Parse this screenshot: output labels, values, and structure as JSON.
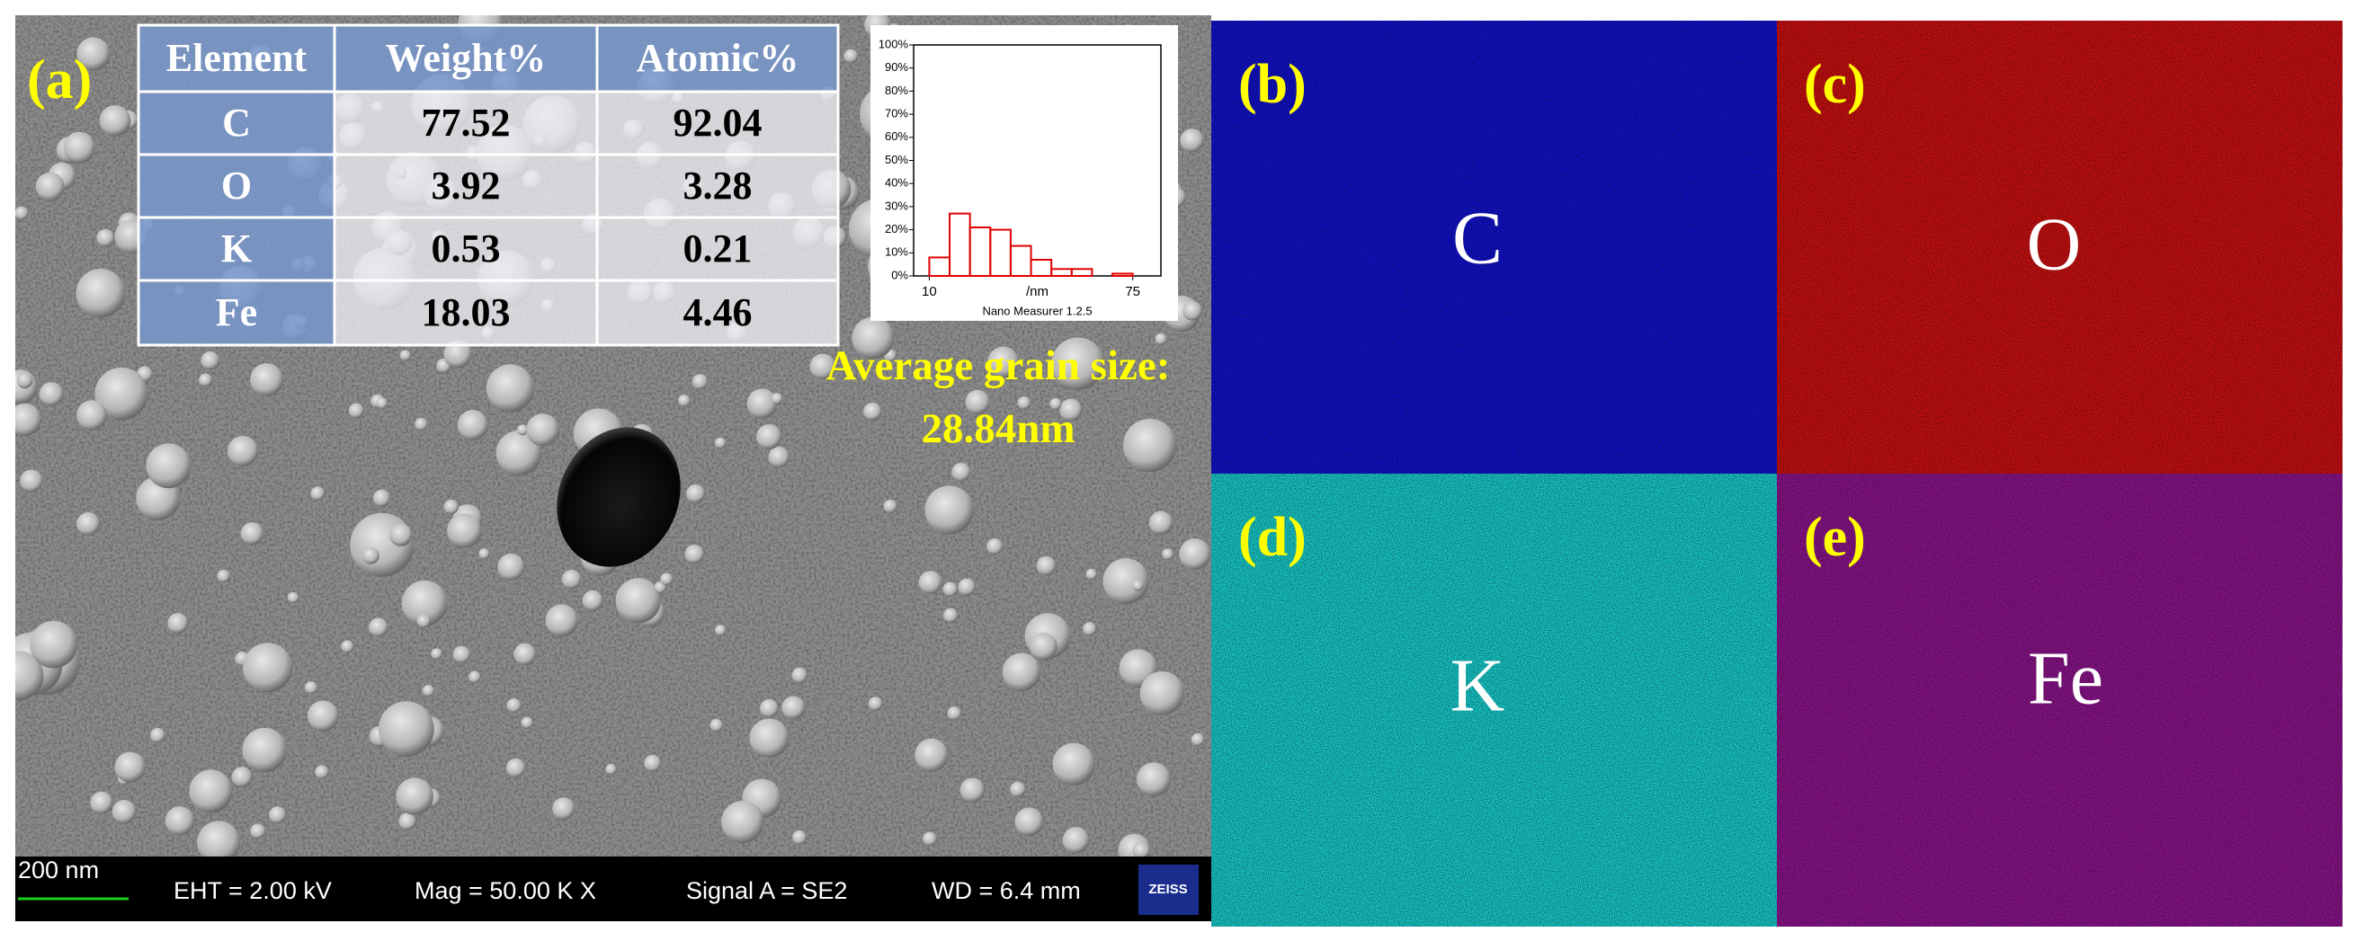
{
  "sem": {
    "label": "(a)",
    "table": {
      "header": [
        "Element",
        "Weight%",
        "Atomic%"
      ],
      "rows": [
        [
          "C",
          77.52,
          92.04
        ],
        [
          "O",
          3.92,
          3.28
        ],
        [
          "K",
          0.53,
          0.21
        ],
        [
          "Fe",
          18.03,
          4.46
        ]
      ]
    },
    "annotation": [
      "Average grain size:",
      "28.84nm"
    ],
    "info_bar": {
      "scale": "200 nm",
      "eht": "EHT =  2.00 kV",
      "mag": "Mag =   50.00 K X",
      "signal": "Signal A = SE2",
      "wd": "WD =  6.4 mm",
      "logo": "ZEISS"
    }
  },
  "chart_data": {
    "type": "histogram",
    "bins": [
      10,
      16.5,
      23,
      29.5,
      36,
      42.5,
      49,
      55.5,
      62,
      68.5,
      75
    ],
    "values": [
      8,
      27,
      21,
      20,
      13,
      7,
      3,
      3,
      0,
      1
    ],
    "color": "#e00000",
    "xlim": [
      5,
      84
    ],
    "ylim": [
      0,
      100
    ],
    "xticks": [
      10,
      75
    ],
    "xlabel": "/nm",
    "yticks": [
      {
        "value": 0,
        "label": "0%"
      },
      {
        "value": 10,
        "label": "10%"
      },
      {
        "value": 20,
        "label": "20%"
      },
      {
        "value": 30,
        "label": "30%"
      },
      {
        "value": 40,
        "label": "40%"
      },
      {
        "value": 50,
        "label": "50%"
      },
      {
        "value": 60,
        "label": "60%"
      },
      {
        "value": 70,
        "label": "70%"
      },
      {
        "value": 80,
        "label": "80%"
      },
      {
        "value": 90,
        "label": "90%"
      },
      {
        "value": 100,
        "label": "100%"
      }
    ],
    "caption": "Nano Measurer 1.2.5"
  },
  "maps": [
    {
      "label": "(b)",
      "element": "C",
      "color": "#1212c8"
    },
    {
      "label": "(c)",
      "element": "O",
      "color": "#c81010"
    },
    {
      "label": "(d)",
      "element": "K",
      "color": "#18c8c8"
    },
    {
      "label": "(e)",
      "element": "Fe",
      "color": "#8a148a"
    }
  ]
}
